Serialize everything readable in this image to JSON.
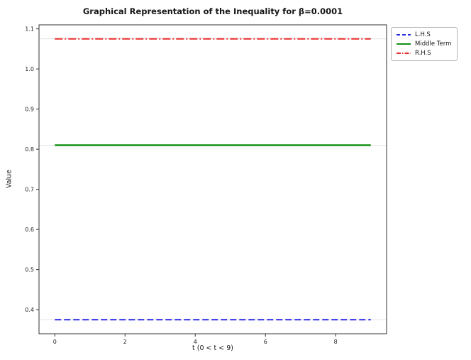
{
  "chart_data": {
    "type": "line",
    "title": "Graphical Representation of the Inequality for β=0.0001",
    "xlabel": "t (0 < t < 9)",
    "ylabel": "Value",
    "xlim": [
      -0.45,
      9.45
    ],
    "ylim": [
      0.34,
      1.11
    ],
    "xticks": [
      0,
      2,
      4,
      6,
      8
    ],
    "yticks": [
      0.4,
      0.5,
      0.6,
      0.7,
      0.8,
      0.9,
      1.0,
      1.1
    ],
    "x_data_range": [
      0,
      9
    ],
    "grid": false,
    "legend_position": "outside upper right",
    "series": [
      {
        "name": "L.H.S",
        "value": 0.375,
        "color": "#2a2ae8",
        "style": "dashed",
        "width": 2
      },
      {
        "name": "Middle Term",
        "value": 0.81,
        "color": "#159015",
        "style": "solid",
        "width": 2.5
      },
      {
        "name": "R.H.S",
        "value": 1.075,
        "color": "#e82a2a",
        "style": "dashdot",
        "width": 2
      }
    ],
    "note": "All three series are constant horizontal lines over 0 < t < 9"
  }
}
